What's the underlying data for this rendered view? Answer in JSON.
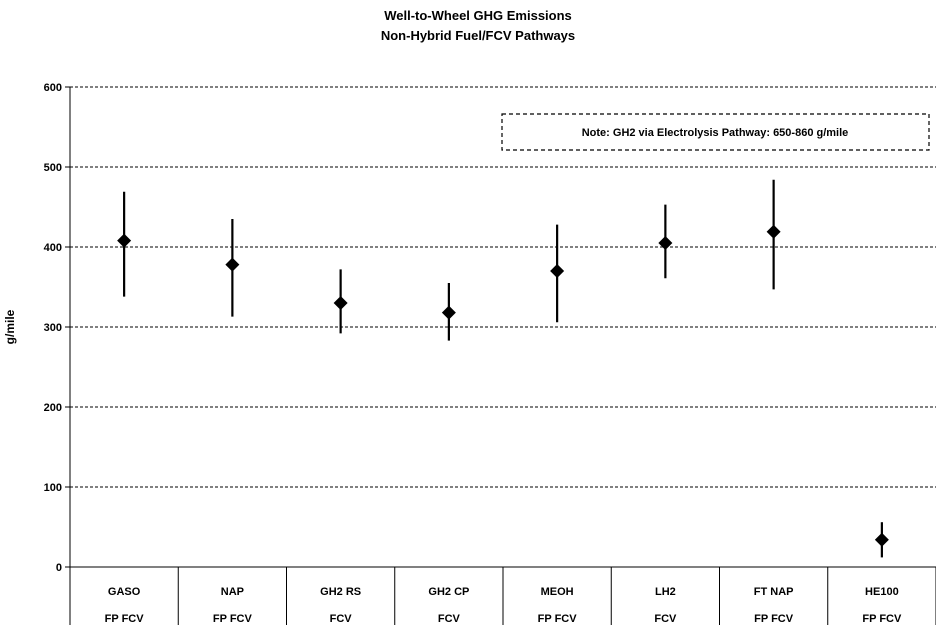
{
  "chart_data": {
    "type": "scatter",
    "title": "Well-to-Wheel GHG Emissions",
    "subtitle": "Non-Hybrid Fuel/FCV Pathways",
    "ylabel": "g/mile",
    "ylim": [
      0,
      600
    ],
    "yticks": [
      0,
      100,
      200,
      300,
      400,
      500,
      600
    ],
    "grid": true,
    "categories": [
      {
        "name": "GASO",
        "sub": "FP FCV"
      },
      {
        "name": "NAP",
        "sub": "FP FCV"
      },
      {
        "name": "GH2 RS",
        "sub": "FCV"
      },
      {
        "name": "GH2 CP",
        "sub": "FCV"
      },
      {
        "name": "MEOH",
        "sub": "FP FCV"
      },
      {
        "name": "LH2",
        "sub": "FCV"
      },
      {
        "name": "FT NAP",
        "sub": "FP FCV"
      },
      {
        "name": "HE100",
        "sub": "FP FCV"
      }
    ],
    "values": [
      408,
      378,
      330,
      318,
      370,
      405,
      419,
      34
    ],
    "low": [
      338,
      313,
      292,
      283,
      306,
      361,
      347,
      12
    ],
    "high": [
      469,
      435,
      372,
      355,
      428,
      453,
      484,
      56
    ],
    "annotation": "Note: GH2 via Electrolysis Pathway: 650-860 g/mile",
    "marker": "diamond",
    "colors": {
      "marker": "#000000",
      "grid": "#000000"
    }
  }
}
